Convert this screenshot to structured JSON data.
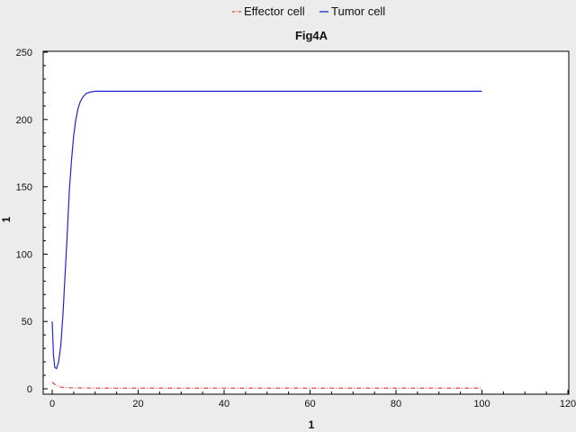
{
  "chart_data": {
    "type": "line",
    "title": "Fig4A",
    "xlabel": "1",
    "ylabel": "1",
    "xlim": [
      0,
      120
    ],
    "ylim": [
      0,
      250
    ],
    "xticks": [
      0,
      20,
      40,
      60,
      80,
      100,
      120
    ],
    "yticks": [
      0,
      50,
      100,
      150,
      200,
      250
    ],
    "grid": false,
    "legend_position": "top-center",
    "series": [
      {
        "name": "Effector cell",
        "color": "#e0453a",
        "style": "dash-dot",
        "x": [
          0,
          0.5,
          1,
          1.5,
          2,
          3,
          4,
          5,
          7,
          10,
          20,
          40,
          60,
          80,
          100
        ],
        "y": [
          5,
          3.5,
          2.5,
          1.8,
          1.3,
          0.9,
          0.8,
          0.7,
          0.6,
          0.5,
          0.5,
          0.5,
          0.5,
          0.5,
          0.5
        ]
      },
      {
        "name": "Tumor cell",
        "color": "#2323d6",
        "style": "solid",
        "x": [
          0,
          0.3,
          0.6,
          1,
          1.5,
          2,
          2.5,
          3,
          3.5,
          4,
          4.5,
          5,
          5.5,
          6,
          6.5,
          7,
          7.5,
          8,
          9,
          10,
          20,
          40,
          60,
          80,
          100
        ],
        "y": [
          50,
          25,
          16,
          15,
          20,
          32,
          55,
          85,
          115,
          148,
          170,
          188,
          200,
          208,
          213,
          216,
          218,
          219.5,
          220.5,
          221,
          221,
          221,
          221,
          221,
          221
        ]
      }
    ]
  }
}
